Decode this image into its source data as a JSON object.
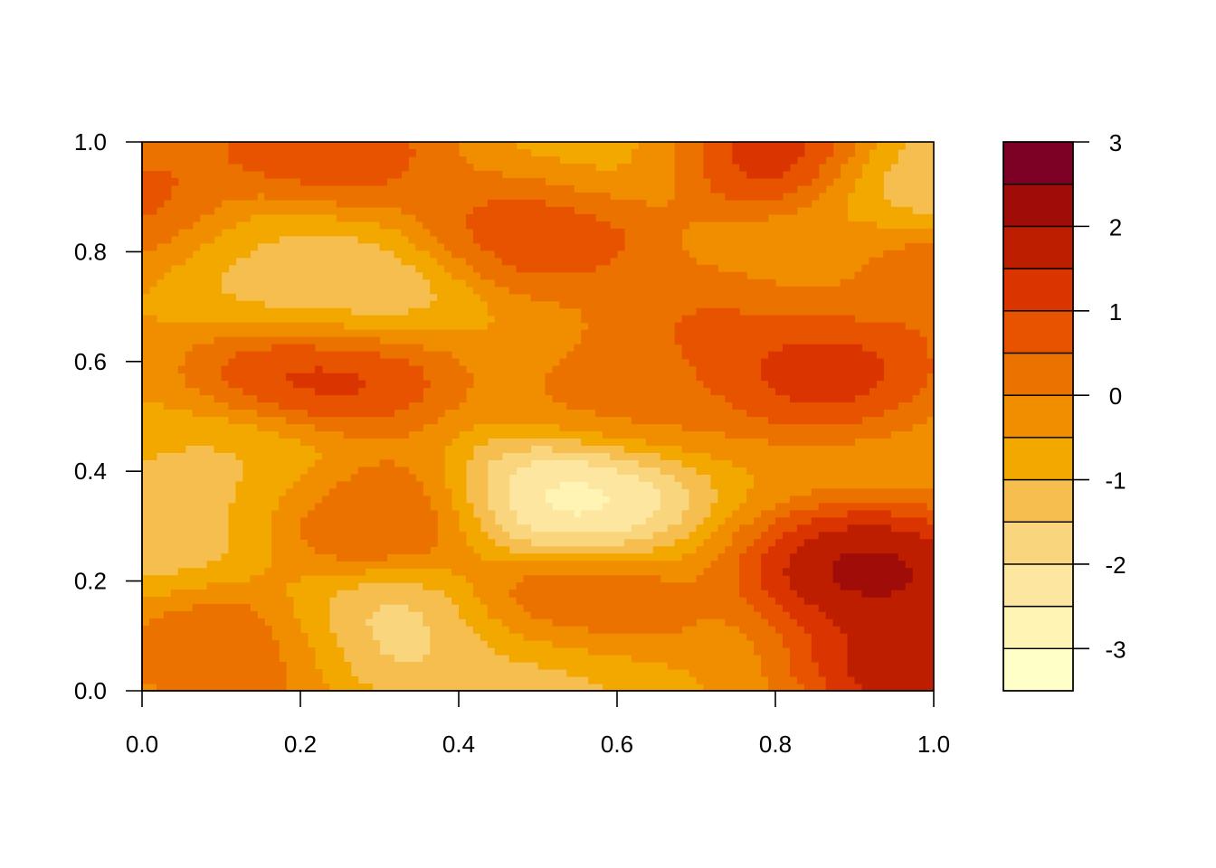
{
  "chart_data": {
    "type": "heatmap",
    "subtype": "filled-contour",
    "title": "",
    "xlabel": "",
    "ylabel": "",
    "xlim": [
      0,
      1
    ],
    "ylim": [
      0,
      1
    ],
    "x_ticks": [
      "0.0",
      "0.2",
      "0.4",
      "0.6",
      "0.8",
      "1.0"
    ],
    "y_ticks": [
      "0.0",
      "0.2",
      "0.4",
      "0.6",
      "0.8",
      "1.0"
    ],
    "grid": false,
    "legend": {
      "placement": "right",
      "type": "colorbar",
      "range": [
        -3.5,
        3
      ],
      "tick_values": [
        3,
        2,
        1,
        0,
        -1,
        -2,
        -3
      ],
      "tick_labels": [
        "3",
        "2",
        "1",
        "0",
        "-1",
        "-2",
        "-3"
      ],
      "level_breaks": [
        -3.5,
        -3,
        -2.5,
        -2,
        -1.5,
        -1,
        -0.5,
        0,
        0.5,
        1,
        1.5,
        2,
        2.5,
        3
      ],
      "colors": [
        "#FFFFC8",
        "#FFF4B3",
        "#FCE6A0",
        "#F9D67E",
        "#F5BE4E",
        "#F3A800",
        "#F08E00",
        "#EC7200",
        "#E85300",
        "#DA3500",
        "#BD1E00",
        "#A00C08",
        "#7D0025"
      ]
    },
    "features": [
      {
        "x": 0.54,
        "y": 0.35,
        "value": -3.4
      },
      {
        "x": 0.31,
        "y": 0.11,
        "value": -2.3
      },
      {
        "x": 0.26,
        "y": 0.72,
        "value": -1.8
      },
      {
        "x": 0.98,
        "y": 0.94,
        "value": -2.0
      },
      {
        "x": 0.12,
        "y": 0.41,
        "value": -1.3
      },
      {
        "x": 0.02,
        "y": 0.29,
        "value": -1.6
      },
      {
        "x": 0.13,
        "y": 0.81,
        "value": -1.5
      },
      {
        "x": 0.5,
        "y": 0.04,
        "value": -1.7
      },
      {
        "x": 0.6,
        "y": 0.98,
        "value": -0.9
      },
      {
        "x": 0.92,
        "y": 0.22,
        "value": 3.0
      },
      {
        "x": 0.99,
        "y": 0.05,
        "value": 2.8
      },
      {
        "x": 0.8,
        "y": 0.98,
        "value": 2.2
      },
      {
        "x": 0.85,
        "y": 0.59,
        "value": 1.9
      },
      {
        "x": 0.23,
        "y": 0.58,
        "value": 1.8
      },
      {
        "x": 0.51,
        "y": 0.84,
        "value": 1.3
      },
      {
        "x": 0.23,
        "y": 0.98,
        "value": 1.3
      },
      {
        "x": 0.01,
        "y": 0.87,
        "value": 1.3
      },
      {
        "x": 0.29,
        "y": 0.32,
        "value": 0.9
      },
      {
        "x": 0.54,
        "y": 0.14,
        "value": 1.0
      },
      {
        "x": 0.13,
        "y": 0.08,
        "value": 0.8
      },
      {
        "x": 0.62,
        "y": 0.54,
        "value": 0.4
      },
      {
        "x": 0.74,
        "y": 0.68,
        "value": 0.9
      },
      {
        "x": 0.98,
        "y": 0.75,
        "value": 0.9
      },
      {
        "x": 0.85,
        "y": 0.77,
        "value": -0.6
      }
    ]
  }
}
